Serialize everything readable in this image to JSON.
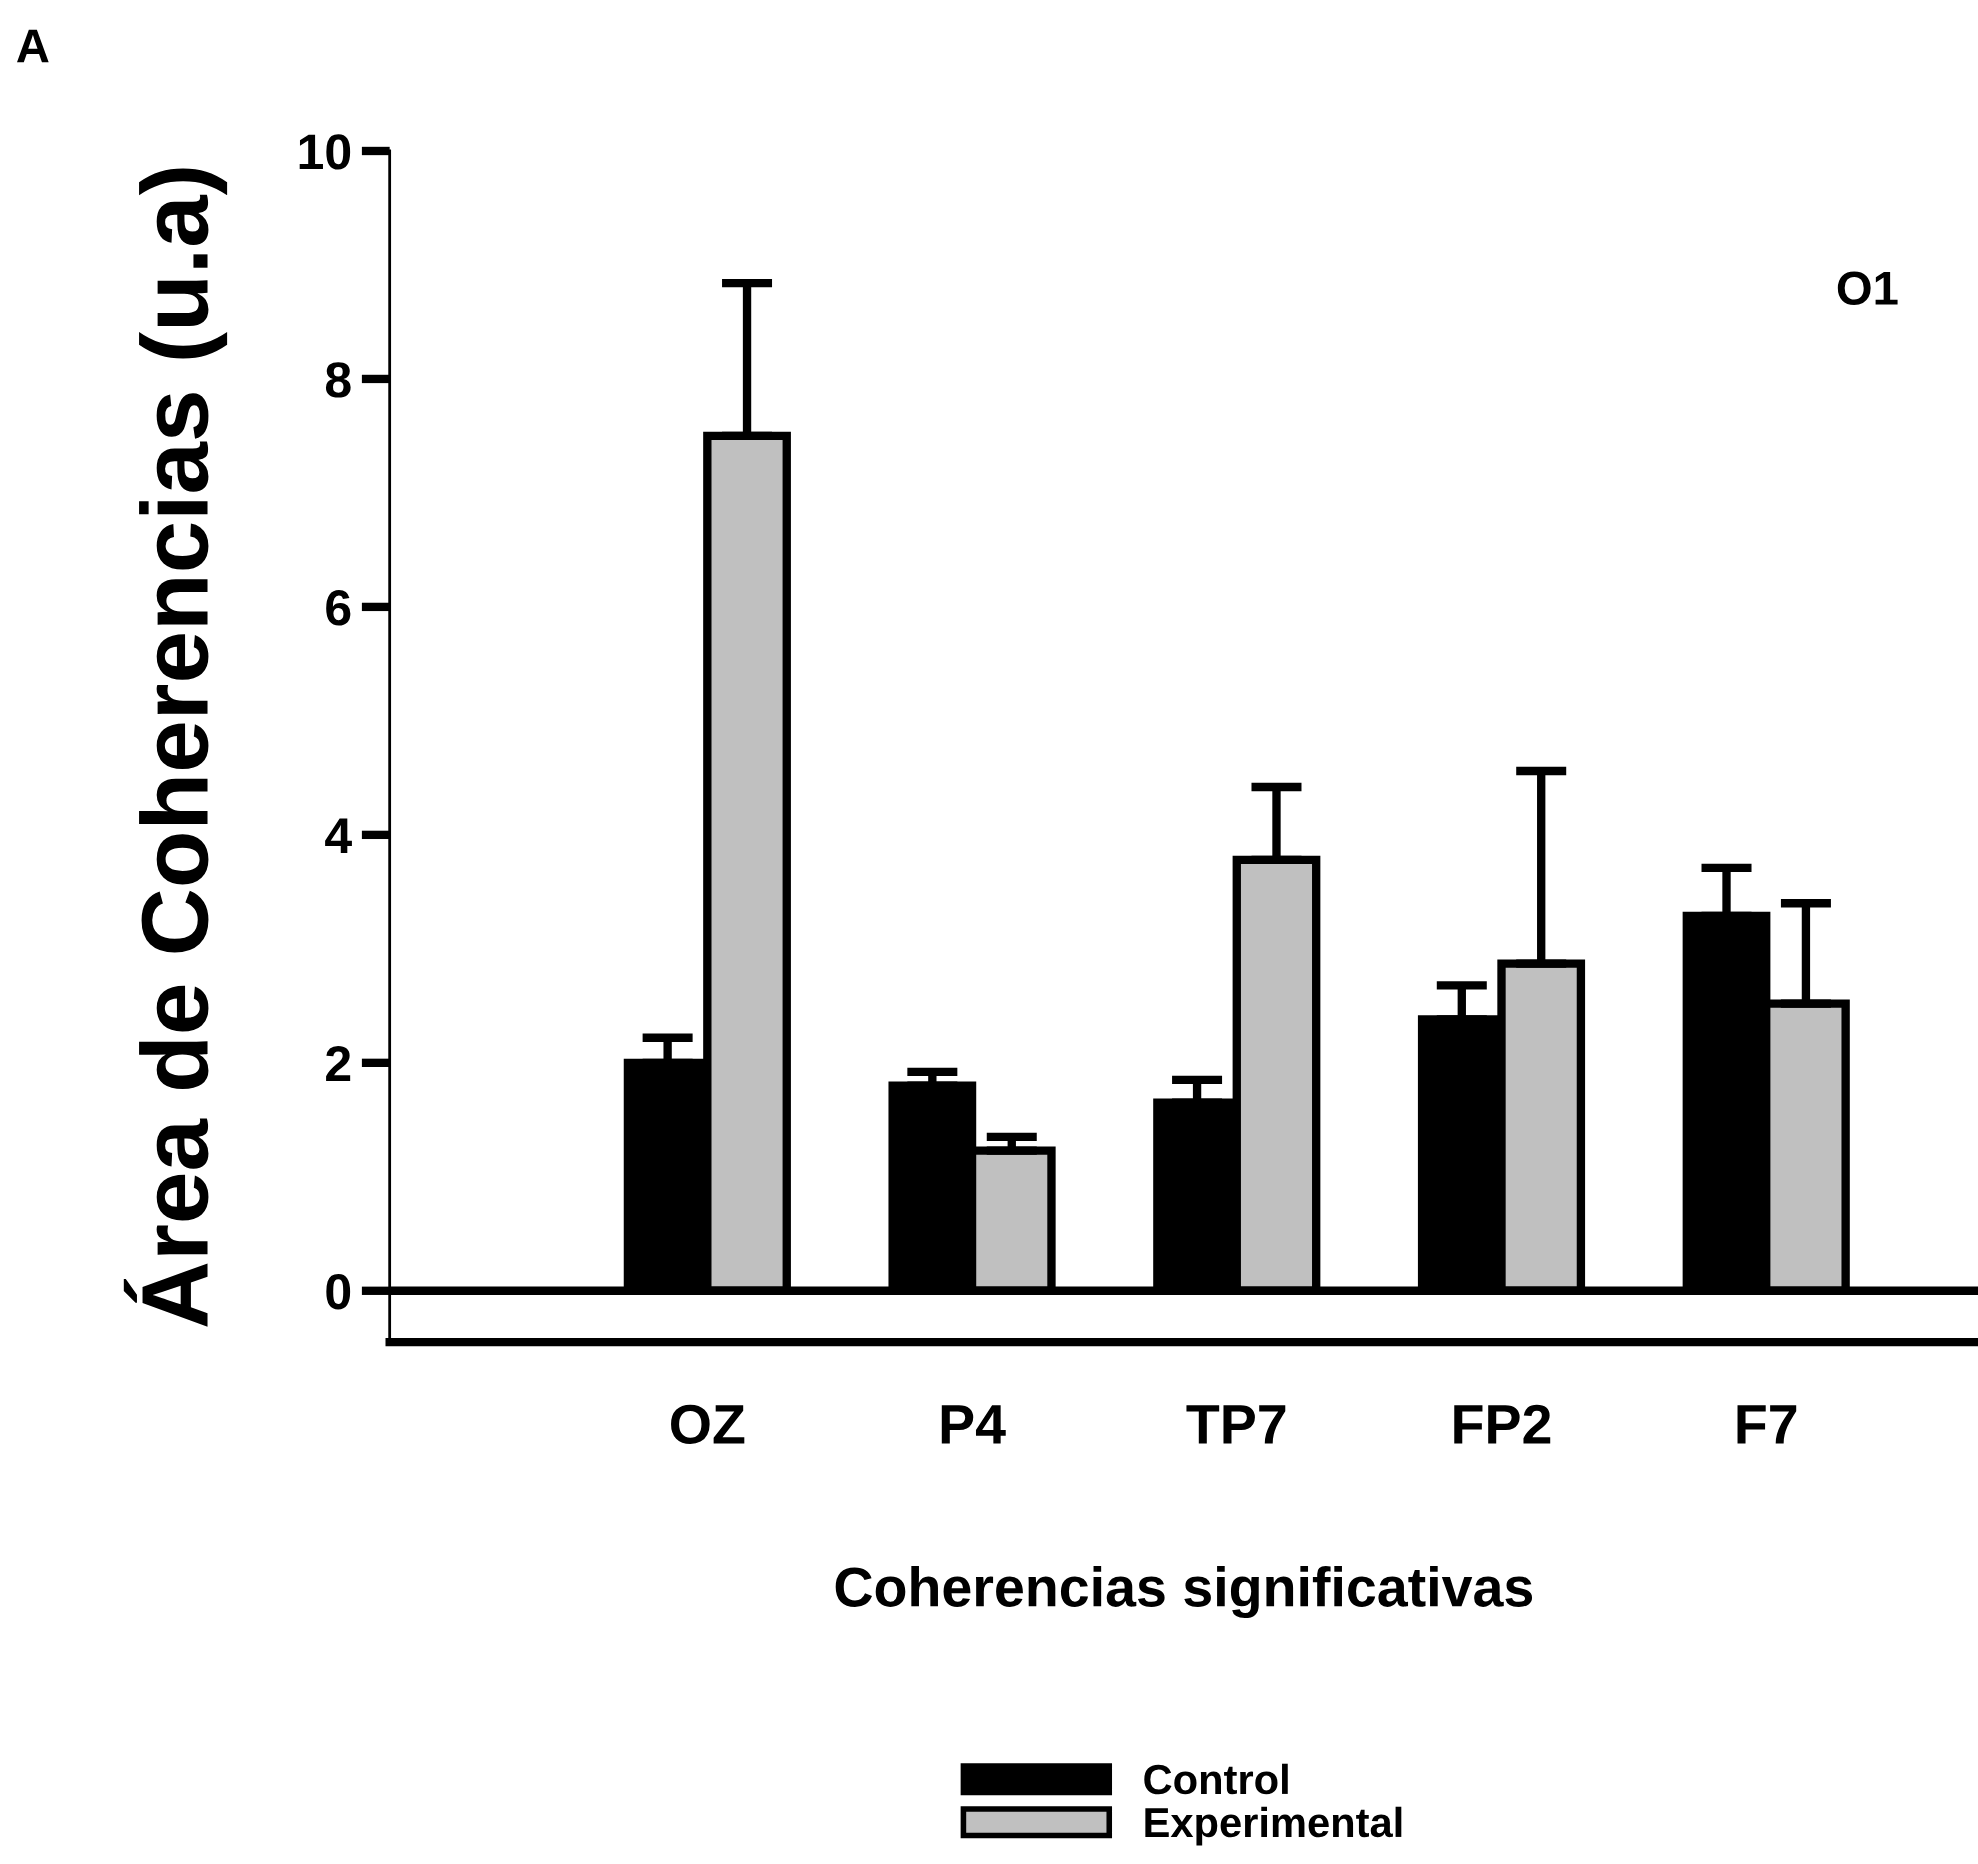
{
  "chart_data": {
    "type": "bar",
    "xlabel": "Coherencias significativas",
    "ylabel": "Área de Coherencias (u.a)",
    "categories": [
      "OZ",
      "P4",
      "TP7",
      "FP2",
      "F7"
    ],
    "series": [
      {
        "name": "Control",
        "color": "#000000",
        "values": [
          2.0,
          1.8,
          1.65,
          2.38,
          3.29
        ],
        "errors": [
          [
            2.0,
            2.22
          ],
          [
            1.8,
            1.92
          ],
          [
            1.65,
            1.85
          ],
          [
            2.38,
            2.68
          ],
          [
            3.29,
            3.71
          ]
        ]
      },
      {
        "name": "Experimental",
        "color": "#c0c0c0",
        "values": [
          7.5,
          1.23,
          3.78,
          2.87,
          2.52
        ],
        "errors": [
          [
            7.5,
            8.84
          ],
          [
            1.23,
            1.35
          ],
          [
            3.78,
            4.42
          ],
          [
            2.87,
            4.56
          ],
          [
            2.52,
            3.4
          ]
        ]
      }
    ],
    "ylim": [
      -0.45,
      10
    ],
    "yticks": [
      0,
      2,
      4,
      6,
      8,
      10
    ],
    "ref_lines": [
      {
        "axis": "y",
        "value": 0,
        "color": "#000000"
      }
    ],
    "annotations": [
      "A",
      "O1"
    ],
    "legend": "bottom",
    "grid": false
  }
}
